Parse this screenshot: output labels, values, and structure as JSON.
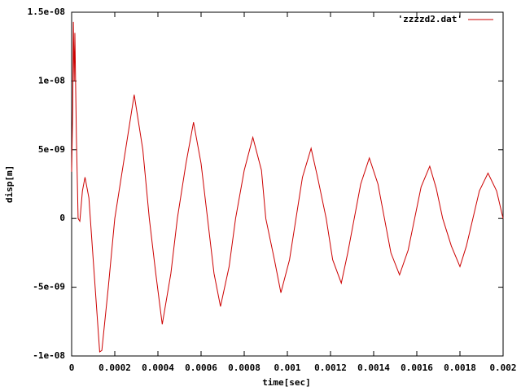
{
  "chart_data": {
    "type": "line",
    "x_label": "time[sec]",
    "y_label": "disp[m]",
    "x": [
      0,
      5e-06,
      8e-06,
      1.2e-05,
      1.5e-05,
      2.2e-05,
      3e-05,
      3.8e-05,
      5e-05,
      6.2e-05,
      8e-05,
      0.0001,
      0.00013,
      0.00014,
      0.00017,
      0.0002,
      0.00024,
      0.00029,
      0.00033,
      0.00036,
      0.00039,
      0.00042,
      0.00046,
      0.00049,
      0.00053,
      0.000565,
      0.0006,
      0.00063,
      0.00066,
      0.00069,
      0.00073,
      0.00076,
      0.0008,
      0.00084,
      0.00088,
      0.0009,
      0.00094,
      0.00097,
      0.00101,
      0.00104,
      0.00107,
      0.00111,
      0.00114,
      0.00118,
      0.00121,
      0.00125,
      0.00128,
      0.00131,
      0.00134,
      0.00138,
      0.00142,
      0.00145,
      0.00148,
      0.00152,
      0.00156,
      0.00159,
      0.00162,
      0.00166,
      0.00169,
      0.00172,
      0.00176,
      0.0018,
      0.00183,
      0.00186,
      0.00189,
      0.00193,
      0.00197,
      0.002
    ],
    "series": [
      {
        "name": "'zzzzd2.dat'",
        "color": "#cc0000",
        "values": [
          3.4e-09,
          8e-09,
          1.43e-08,
          1e-08,
          1.35e-08,
          6e-09,
          0,
          -2e-10,
          2e-09,
          3e-09,
          1.5e-09,
          -3e-09,
          -9.7e-09,
          -9.6e-09,
          -5e-09,
          0,
          4e-09,
          9e-09,
          5e-09,
          0,
          -4e-09,
          -7.7e-09,
          -4e-09,
          0,
          4e-09,
          7e-09,
          4e-09,
          0,
          -4e-09,
          -6.4e-09,
          -3.5e-09,
          0,
          3.5e-09,
          5.9e-09,
          3.5e-09,
          0,
          -3e-09,
          -5.4e-09,
          -3e-09,
          0,
          3e-09,
          5.1e-09,
          3e-09,
          0,
          -3e-09,
          -4.7e-09,
          -2.5e-09,
          0,
          2.5e-09,
          4.4e-09,
          2.5e-09,
          0,
          -2.5e-09,
          -4.1e-09,
          -2.3e-09,
          0,
          2.3e-09,
          3.8e-09,
          2.2e-09,
          0,
          -2e-09,
          -3.5e-09,
          -2e-09,
          0,
          2e-09,
          3.3e-09,
          2e-09,
          0
        ]
      }
    ],
    "xlim": [
      0,
      0.002
    ],
    "xticks": [
      0,
      0.0002,
      0.0004,
      0.0006,
      0.0008,
      0.001,
      0.0012,
      0.0014,
      0.0016,
      0.0018,
      0.002
    ],
    "ylim": [
      -1e-08,
      1.5e-08
    ],
    "yticks": [
      {
        "value": -1e-08,
        "label": "-1e-08"
      },
      {
        "value": -5e-09,
        "label": "-5e-09"
      },
      0,
      {
        "value": 5e-09,
        "label": "5e-09"
      },
      {
        "value": 1e-08,
        "label": "1e-08"
      },
      {
        "value": 1.5e-08,
        "label": "1.5e-08"
      }
    ],
    "legend": "top-right"
  }
}
